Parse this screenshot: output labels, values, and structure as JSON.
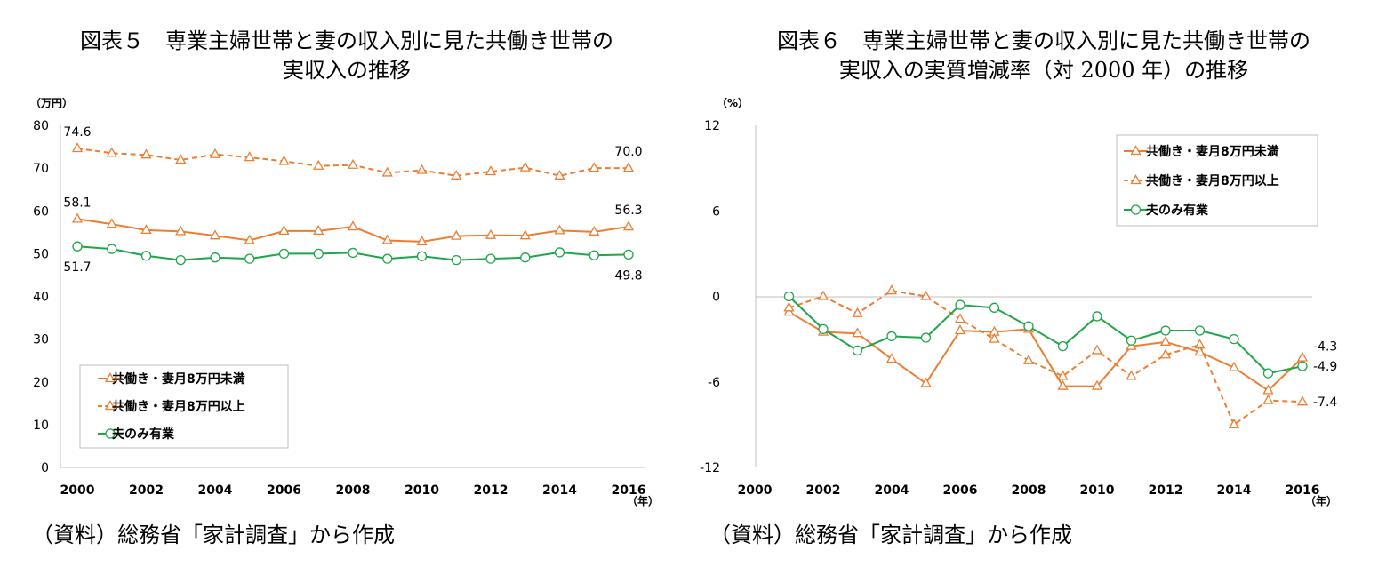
{
  "chart_data": [
    {
      "type": "line",
      "title_lines": [
        "図表５　専業主婦世帯と妻の収入別に見た共働き世帯の",
        "実収入の推移"
      ],
      "source": "（資料）総務省「家計調査」から作成",
      "y_unit": "（万円）",
      "x_unit": "（年）",
      "ylim": [
        0,
        80
      ],
      "y_ticks": [
        "0",
        "10",
        "20",
        "30",
        "40",
        "50",
        "60",
        "70",
        "80"
      ],
      "x": [
        2000,
        2001,
        2002,
        2003,
        2004,
        2005,
        2006,
        2007,
        2008,
        2009,
        2010,
        2011,
        2012,
        2013,
        2014,
        2015,
        2016
      ],
      "x_tick_labels": [
        "2000",
        "2002",
        "2004",
        "2006",
        "2008",
        "2010",
        "2012",
        "2014",
        "2016"
      ],
      "series": [
        {
          "name": "共働き・妻月8万円未満",
          "color": "#ED7D31",
          "style": "solid",
          "marker": "triangle",
          "values": [
            58.1,
            56.9,
            55.5,
            55.2,
            54.2,
            53.1,
            55.3,
            55.3,
            56.3,
            53.1,
            52.8,
            54.1,
            54.3,
            54.2,
            55.4,
            55.1,
            56.3
          ]
        },
        {
          "name": "共働き・妻月8万円以上",
          "color": "#ED7D31",
          "style": "dashed",
          "marker": "triangle",
          "values": [
            74.6,
            73.5,
            73.1,
            71.9,
            73.2,
            72.5,
            71.6,
            70.5,
            70.7,
            68.9,
            69.5,
            68.2,
            69.2,
            70.1,
            68.2,
            70.0,
            70.0
          ]
        },
        {
          "name": "夫のみ有業",
          "color": "#1FA64A",
          "style": "solid",
          "marker": "circle",
          "values": [
            51.7,
            51.1,
            49.5,
            48.5,
            49.1,
            48.8,
            50.0,
            50.0,
            50.2,
            48.8,
            49.4,
            48.5,
            48.8,
            49.1,
            50.3,
            49.6,
            49.8
          ]
        }
      ],
      "data_labels": [
        {
          "text": "74.6",
          "series": 1,
          "x": 2000,
          "pos": "above"
        },
        {
          "text": "70.0",
          "series": 1,
          "x": 2016,
          "pos": "above"
        },
        {
          "text": "58.1",
          "series": 0,
          "x": 2000,
          "pos": "above"
        },
        {
          "text": "56.3",
          "series": 0,
          "x": 2016,
          "pos": "above"
        },
        {
          "text": "51.7",
          "series": 2,
          "x": 2000,
          "pos": "below"
        },
        {
          "text": "49.8",
          "series": 2,
          "x": 2016,
          "pos": "below"
        }
      ],
      "legend": "bottom-left",
      "grid": false
    },
    {
      "type": "line",
      "title_lines": [
        "図表６　専業主婦世帯と妻の収入別に見た共働き世帯の",
        "実収入の実質増減率（対 2000 年）の推移"
      ],
      "source": "（資料）総務省「家計調査」から作成",
      "y_unit": "（%）",
      "x_unit": "（年）",
      "ylim": [
        -12,
        12
      ],
      "y_ticks": [
        "-12",
        "-6",
        "0",
        "6",
        "12"
      ],
      "x": [
        2001,
        2002,
        2003,
        2004,
        2005,
        2006,
        2007,
        2008,
        2009,
        2010,
        2011,
        2012,
        2013,
        2014,
        2015,
        2016
      ],
      "xlim": [
        2000,
        2016
      ],
      "x_tick_labels": [
        "2000",
        "2002",
        "2004",
        "2006",
        "2008",
        "2010",
        "2012",
        "2014",
        "2016"
      ],
      "series": [
        {
          "name": "共働き・妻月8万円未満",
          "color": "#ED7D31",
          "style": "solid",
          "marker": "triangle",
          "values": [
            -1.1,
            -2.5,
            -2.6,
            -4.4,
            -6.1,
            -2.4,
            -2.5,
            -2.3,
            -6.3,
            -6.3,
            -3.5,
            -3.2,
            -3.9,
            -5.0,
            -6.6,
            -4.3
          ]
        },
        {
          "name": "共働き・妻月8万円以上",
          "color": "#ED7D31",
          "style": "dashed",
          "marker": "triangle",
          "values": [
            -0.8,
            0.0,
            -1.2,
            0.4,
            0.0,
            -1.6,
            -3.0,
            -4.5,
            -5.6,
            -3.8,
            -5.6,
            -4.1,
            -3.4,
            -9.0,
            -7.3,
            -7.4
          ]
        },
        {
          "name": "夫のみ有業",
          "color": "#1FA64A",
          "style": "solid",
          "marker": "circle",
          "values": [
            0.0,
            -2.3,
            -3.8,
            -2.8,
            -2.9,
            -0.6,
            -0.8,
            -2.1,
            -3.5,
            -1.4,
            -3.1,
            -2.4,
            -2.4,
            -3.0,
            -5.4,
            -4.9
          ]
        }
      ],
      "data_labels": [
        {
          "text": "-4.3",
          "series": 0,
          "x": 2016,
          "pos": "right-up"
        },
        {
          "text": "-4.9",
          "series": 2,
          "x": 2016,
          "pos": "right"
        },
        {
          "text": "-7.4",
          "series": 1,
          "x": 2016,
          "pos": "right"
        }
      ],
      "legend": "top-right",
      "grid": false
    }
  ]
}
